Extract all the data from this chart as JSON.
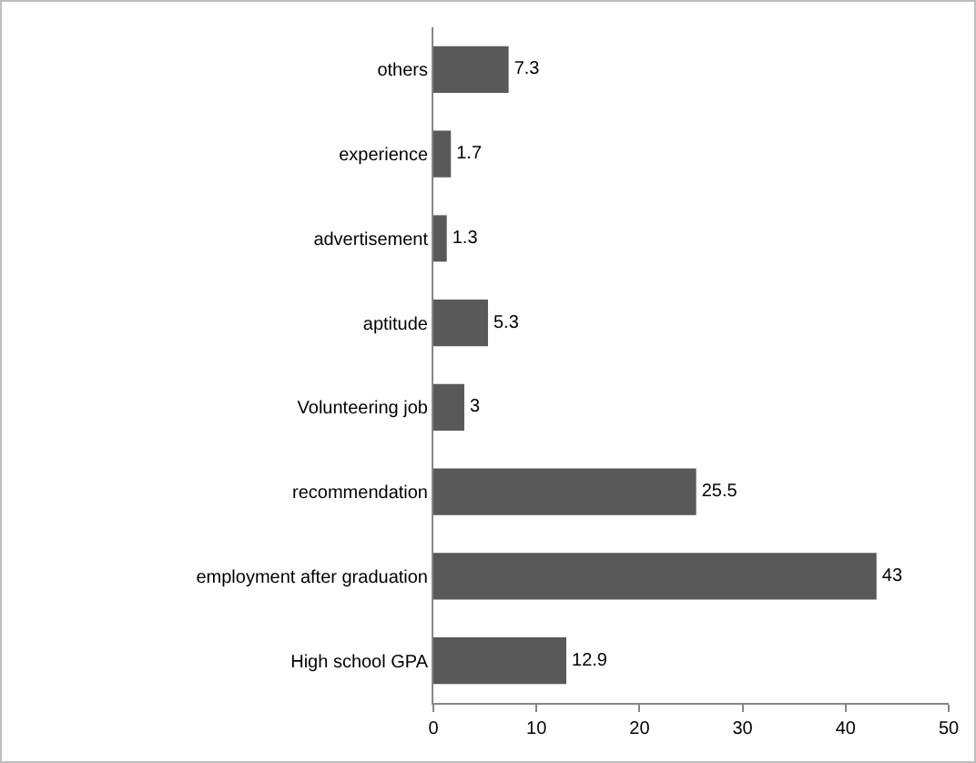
{
  "chart_data": {
    "type": "bar",
    "orientation": "horizontal",
    "categories": [
      "others",
      "experience",
      "advertisement",
      "aptitude",
      "Volunteering job",
      "recommendation",
      "employment after graduation",
      "High school GPA"
    ],
    "values": [
      7.3,
      1.7,
      1.3,
      5.3,
      3,
      25.5,
      43,
      12.9
    ],
    "color": "#595959",
    "data_labels": true,
    "grid": false,
    "legend": false,
    "xlim": [
      0,
      50
    ],
    "xticks": [
      0,
      10,
      20,
      30,
      40,
      50
    ]
  }
}
